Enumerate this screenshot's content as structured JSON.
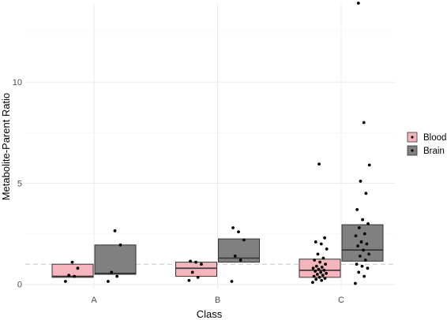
{
  "chart_data": {
    "type": "box",
    "xlabel": "Class",
    "ylabel": "Metabolite-Parent Ratio",
    "categories": [
      "A",
      "B",
      "C"
    ],
    "ylim": [
      -0.2,
      13.9
    ],
    "yticks": [
      0,
      5,
      10
    ],
    "reference_line": {
      "y": 1,
      "style": "dashed"
    },
    "legend": {
      "placement": "right"
    },
    "series": [
      {
        "name": "Blood",
        "color": "#f4b6bc",
        "boxes": [
          {
            "category": "A",
            "q1": 0.35,
            "median": 0.4,
            "q3": 1.0,
            "points": [
              0.15,
              0.4,
              0.45,
              0.8,
              1.1
            ]
          },
          {
            "category": "B",
            "q1": 0.4,
            "median": 0.8,
            "q3": 1.1,
            "points": [
              0.2,
              0.35,
              0.6,
              1.0,
              1.1,
              1.15
            ]
          },
          {
            "category": "C",
            "q1": 0.35,
            "median": 0.7,
            "q3": 1.25,
            "points": [
              0.1,
              0.2,
              0.25,
              0.3,
              0.35,
              0.4,
              0.45,
              0.5,
              0.55,
              0.6,
              0.65,
              0.7,
              0.75,
              0.8,
              0.85,
              0.9,
              1.0,
              1.1,
              1.2,
              1.3,
              1.5,
              1.75,
              2.0,
              2.1,
              2.3,
              5.95
            ]
          }
        ]
      },
      {
        "name": "Brain",
        "color": "#808080",
        "boxes": [
          {
            "category": "A",
            "q1": 0.5,
            "median": 0.55,
            "q3": 1.95,
            "points": [
              0.15,
              0.4,
              0.6,
              1.95,
              2.65
            ]
          },
          {
            "category": "B",
            "q1": 1.1,
            "median": 1.3,
            "q3": 2.25,
            "points": [
              0.15,
              1.2,
              1.4,
              2.2,
              2.6,
              2.8
            ]
          },
          {
            "category": "C",
            "q1": 1.15,
            "median": 1.7,
            "q3": 2.95,
            "points": [
              0.05,
              0.4,
              0.6,
              0.8,
              0.9,
              1.0,
              1.2,
              1.4,
              1.5,
              1.7,
              1.9,
              2.0,
              2.1,
              2.4,
              2.5,
              2.8,
              3.0,
              3.2,
              3.7,
              4.5,
              5.1,
              5.9,
              8.0,
              13.9
            ]
          }
        ]
      }
    ]
  }
}
